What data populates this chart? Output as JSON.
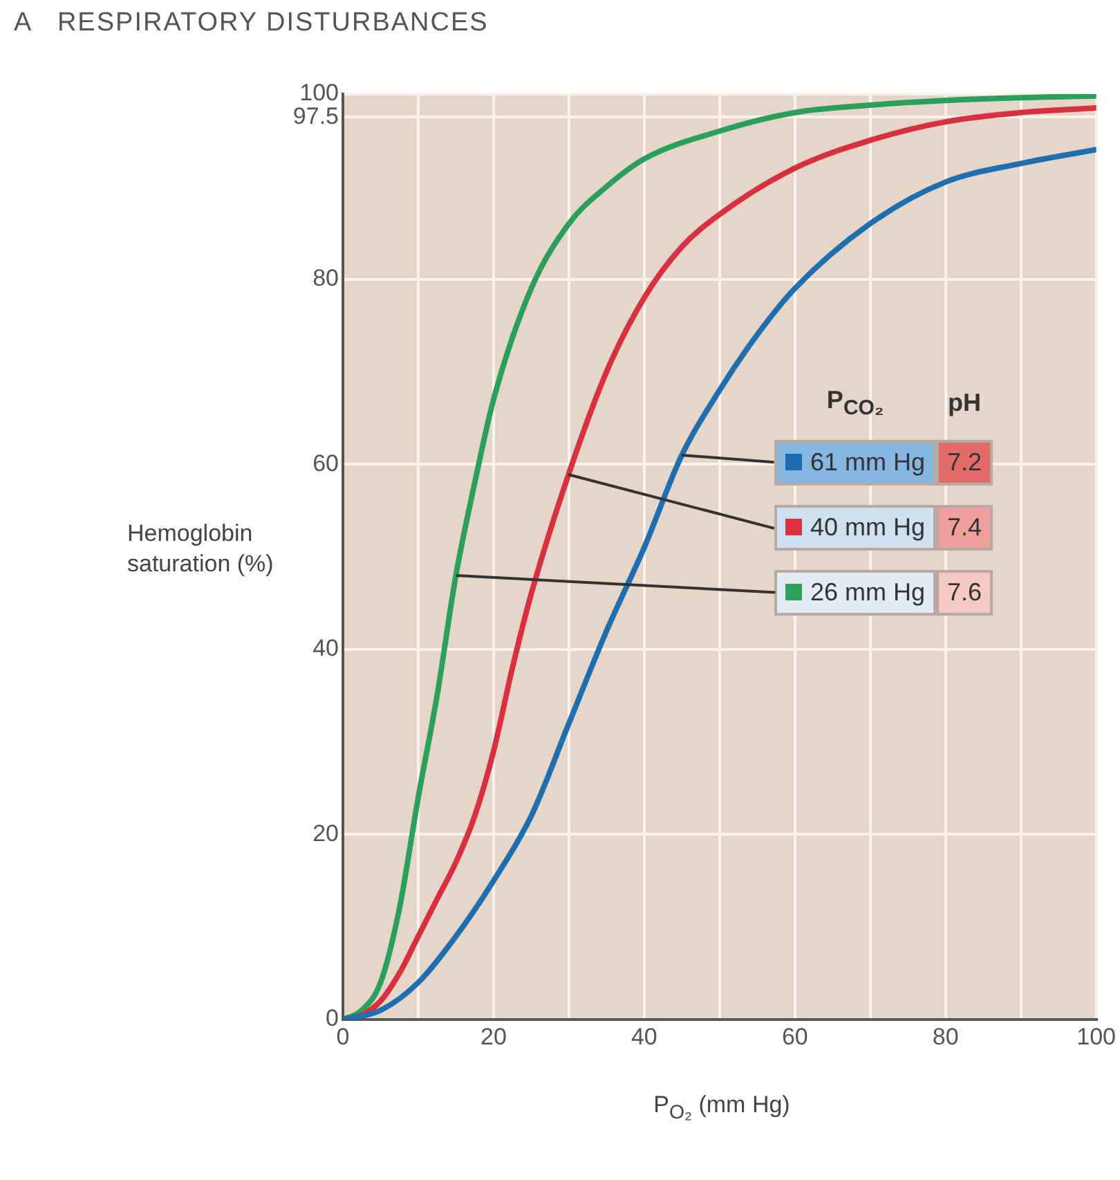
{
  "chart_data": {
    "type": "line",
    "title": "A   RESPIRATORY DISTURBANCES",
    "xlabel": "P$_{O₂}$ (mm Hg)",
    "ylabel": "Hemoglobin saturation (%)",
    "legend_title": "P$_{CO₂}$",
    "annotations": [
      "pH",
      "7.2",
      "7.4",
      "7.6"
    ],
    "xlim": [
      0,
      100
    ],
    "xticks": [
      0,
      {
        "value": 10,
        "label": null
      },
      20,
      {
        "value": 30,
        "label": null
      },
      40,
      {
        "value": 50,
        "label": null
      },
      60,
      {
        "value": 70,
        "label": null
      },
      80,
      {
        "value": 90,
        "label": null
      },
      100
    ],
    "ylim": [
      0,
      100
    ],
    "yticks": [
      0,
      20,
      40,
      60,
      80,
      97.5,
      100
    ],
    "grid": true,
    "legend": "right",
    "marker": "none",
    "line_style": "solid",
    "series": [
      {
        "name": "61 mm Hg",
        "color": "#1f6fb0",
        "x": [
          0,
          5,
          10,
          15,
          20,
          25,
          30,
          35,
          40,
          45,
          50,
          55,
          60,
          70,
          80,
          90,
          100
        ],
        "values": [
          0,
          1,
          4,
          9,
          15,
          22,
          32,
          42,
          51,
          61,
          68,
          74,
          79,
          86,
          90.5,
          92.5,
          94
        ]
      },
      {
        "name": "40 mm Hg",
        "color": "#d8303f",
        "x": [
          0,
          2.5,
          5,
          7.5,
          10,
          12.5,
          15,
          17.5,
          20,
          22.5,
          25,
          30,
          35,
          40,
          45,
          50,
          60,
          70,
          80,
          90,
          100
        ],
        "values": [
          0,
          0.5,
          2,
          5,
          9,
          13,
          17,
          22,
          29,
          38,
          46,
          59,
          70,
          78,
          83.5,
          87,
          92,
          95,
          97,
          98,
          98.5
        ]
      },
      {
        "name": "26 mm Hg",
        "color": "#2aa05a",
        "x": [
          0,
          2.5,
          5,
          7.5,
          10,
          12.5,
          15,
          17.5,
          20,
          25,
          30,
          35,
          40,
          50,
          60,
          70,
          80,
          90,
          100
        ],
        "values": [
          0,
          1,
          4,
          12,
          24,
          35,
          48,
          58,
          67,
          79,
          86,
          90,
          93,
          96,
          98,
          98.8,
          99.3,
          99.6,
          99.8
        ]
      }
    ]
  }
}
